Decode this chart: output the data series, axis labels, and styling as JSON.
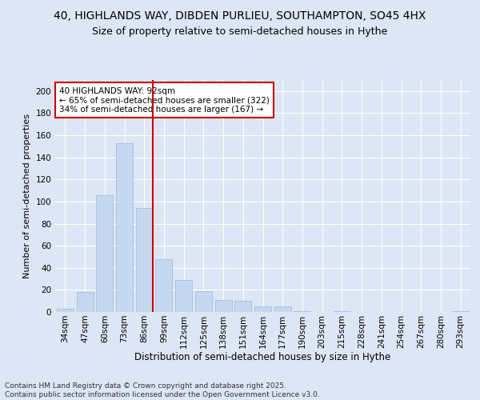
{
  "title1": "40, HIGHLANDS WAY, DIBDEN PURLIEU, SOUTHAMPTON, SO45 4HX",
  "title2": "Size of property relative to semi-detached houses in Hythe",
  "xlabel": "Distribution of semi-detached houses by size in Hythe",
  "ylabel": "Number of semi-detached properties",
  "categories": [
    "34sqm",
    "47sqm",
    "60sqm",
    "73sqm",
    "86sqm",
    "99sqm",
    "112sqm",
    "125sqm",
    "138sqm",
    "151sqm",
    "164sqm",
    "177sqm",
    "190sqm",
    "203sqm",
    "215sqm",
    "228sqm",
    "241sqm",
    "254sqm",
    "267sqm",
    "280sqm",
    "293sqm"
  ],
  "values": [
    3,
    18,
    106,
    153,
    94,
    48,
    29,
    19,
    11,
    10,
    5,
    5,
    1,
    0,
    1,
    0,
    0,
    0,
    0,
    0,
    1
  ],
  "bar_color": "#c5d8f0",
  "bar_edge_color": "#9ab8d8",
  "vline_x_idx": 4,
  "vline_color": "#cc0000",
  "annotation_text": "40 HIGHLANDS WAY: 92sqm\n← 65% of semi-detached houses are smaller (322)\n34% of semi-detached houses are larger (167) →",
  "annotation_box_color": "#ffffff",
  "annotation_box_edge": "#cc0000",
  "background_color": "#dce6f5",
  "plot_background": "#dce6f5",
  "grid_color": "#ffffff",
  "footer": "Contains HM Land Registry data © Crown copyright and database right 2025.\nContains public sector information licensed under the Open Government Licence v3.0.",
  "ylim": [
    0,
    210
  ],
  "yticks": [
    0,
    20,
    40,
    60,
    80,
    100,
    120,
    140,
    160,
    180,
    200
  ],
  "title1_fontsize": 10,
  "title2_fontsize": 9,
  "xlabel_fontsize": 8.5,
  "ylabel_fontsize": 8,
  "tick_fontsize": 7.5,
  "footer_fontsize": 6.5
}
